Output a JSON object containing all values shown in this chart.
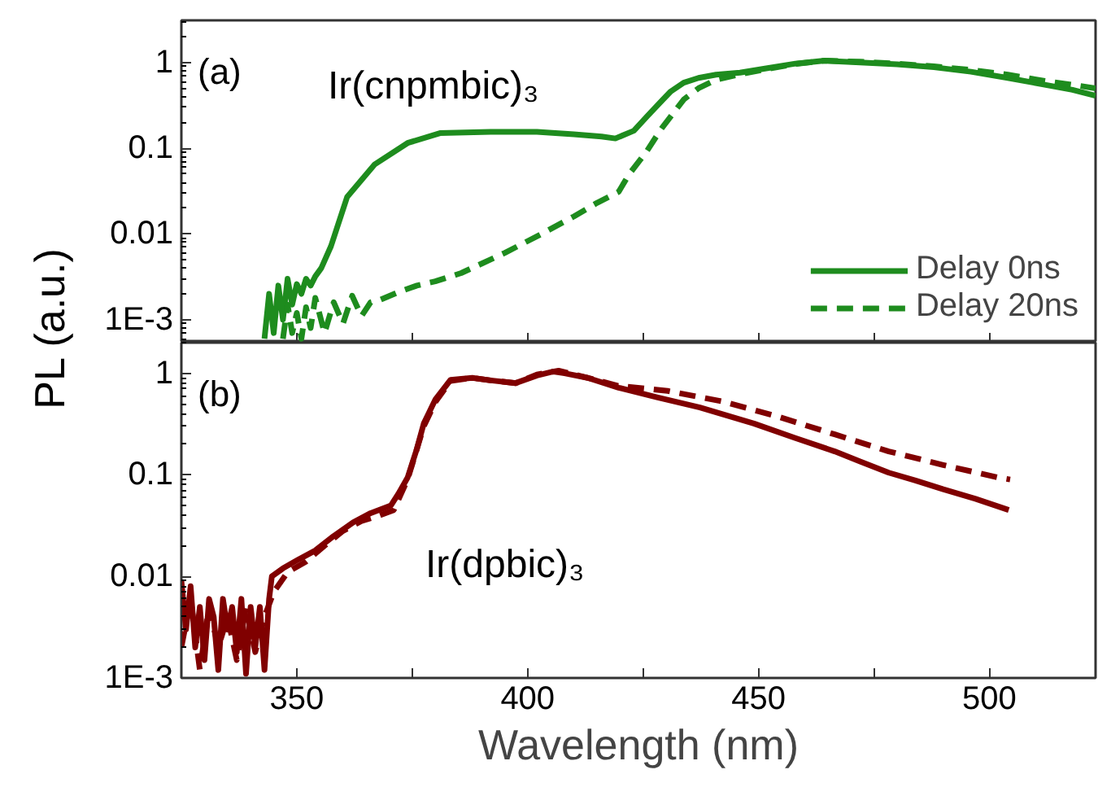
{
  "chart_data": [
    {
      "type": "line",
      "ylabel": "PL (a.u.)",
      "annotations": [
        "(a)",
        "Ir(cnpmbic)₃"
      ],
      "log": "y",
      "grid": false,
      "legend": "bottom right",
      "tick_labels": "y",
      "xlim": [
        325,
        523
      ],
      "xticks": [
        350,
        {
          "value": 375,
          "label": null
        },
        400,
        {
          "value": 425,
          "label": null
        },
        450,
        {
          "value": 475,
          "label": null
        },
        500
      ],
      "ylim": [
        0.00054,
        3.1
      ],
      "yticks": [
        {
          "value": 0.001,
          "label": "1E-3"
        },
        0.01,
        0.1,
        1
      ],
      "series": [
        {
          "name": "Delay 0ns",
          "color": "#1e8c1e",
          "line_style": "solid",
          "x": [
            343,
            344,
            345,
            346,
            347,
            348,
            349,
            350,
            351,
            352,
            353,
            354,
            355.3,
            357.4,
            360.9,
            366.9,
            374,
            381,
            392,
            402,
            410,
            416,
            419,
            423,
            426,
            429.1,
            431,
            433.8,
            437,
            440.8,
            446,
            451.4,
            458,
            464.3,
            472,
            480,
            488,
            496,
            504,
            512,
            518,
            523
          ],
          "values": [
            0.0006,
            0.002,
            0.0007,
            0.0025,
            0.001,
            0.003,
            0.0015,
            0.0026,
            0.002,
            0.003,
            0.0025,
            0.0032,
            0.004,
            0.0072,
            0.027,
            0.065,
            0.115,
            0.15,
            0.155,
            0.155,
            0.145,
            0.137,
            0.13,
            0.16,
            0.24,
            0.36,
            0.46,
            0.58,
            0.66,
            0.72,
            0.76,
            0.85,
            0.97,
            1.05,
            1.0,
            0.95,
            0.88,
            0.78,
            0.66,
            0.55,
            0.48,
            0.41
          ]
        },
        {
          "name": "Delay 20ns",
          "color": "#1e8c1e",
          "line_style": "dashed",
          "x": [
            347,
            348,
            349,
            350,
            351,
            352,
            353,
            354,
            356,
            358,
            360,
            362,
            364,
            366,
            368,
            372,
            376,
            380,
            385.6,
            390,
            395,
            403,
            410,
            415,
            419.7,
            422,
            425.6,
            429,
            433.8,
            437,
            440.8,
            446,
            452,
            458,
            464.3,
            472,
            480,
            488,
            496,
            504,
            512,
            518,
            523
          ],
          "values": [
            0.0006,
            0.0015,
            0.0007,
            0.0012,
            0.0006,
            0.0014,
            0.0008,
            0.0018,
            0.0007,
            0.0016,
            0.0009,
            0.0019,
            0.0011,
            0.0016,
            0.0017,
            0.0021,
            0.0025,
            0.0028,
            0.0035,
            0.0045,
            0.006,
            0.01,
            0.016,
            0.023,
            0.031,
            0.05,
            0.089,
            0.17,
            0.37,
            0.5,
            0.63,
            0.73,
            0.84,
            0.96,
            1.05,
            1.02,
            0.97,
            0.9,
            0.82,
            0.72,
            0.61,
            0.55,
            0.5
          ]
        }
      ]
    },
    {
      "type": "line",
      "xlabel": "Wavelength (nm)",
      "annotations": [
        "(b)",
        "Ir(dpbic)₃"
      ],
      "log": "y",
      "grid": false,
      "xlim": [
        325,
        523
      ],
      "xticks": [
        350,
        {
          "value": 375,
          "label": null
        },
        400,
        {
          "value": 425,
          "label": null
        },
        450,
        {
          "value": 475,
          "label": null
        },
        500
      ],
      "ylim": [
        0.001,
        2.0
      ],
      "yticks": [
        {
          "value": 0.001,
          "label": "1E-3"
        },
        0.01,
        0.1,
        1
      ],
      "series": [
        {
          "color": "#800000",
          "line_style": "solid",
          "x": [
            325,
            326,
            327,
            328,
            329,
            330,
            331,
            332,
            333,
            334,
            335,
            336,
            337,
            338,
            339,
            340,
            341,
            342,
            343,
            344,
            344.6,
            347,
            350.4,
            354,
            358,
            362.2,
            366,
            370.4,
            372,
            374,
            376,
            377.5,
            380,
            383.3,
            388,
            392,
            397.4,
            402,
            405.6,
            408,
            413,
            419.7,
            428,
            437.3,
            449,
            458,
            466.5,
            472,
            478.2,
            484,
            490,
            497,
            504.2
          ],
          "values": [
            0.009,
            0.003,
            0.008,
            0.002,
            0.005,
            0.0015,
            0.006,
            0.004,
            0.0012,
            0.006,
            0.003,
            0.005,
            0.0018,
            0.006,
            0.0011,
            0.005,
            0.002,
            0.005,
            0.0012,
            0.006,
            0.01,
            0.012,
            0.0147,
            0.018,
            0.025,
            0.034,
            0.042,
            0.05,
            0.065,
            0.094,
            0.18,
            0.32,
            0.55,
            0.86,
            0.9,
            0.85,
            0.8,
            0.95,
            1.04,
            1.0,
            0.9,
            0.72,
            0.58,
            0.46,
            0.32,
            0.23,
            0.17,
            0.135,
            0.105,
            0.088,
            0.072,
            0.058,
            0.045
          ]
        },
        {
          "color": "#800000",
          "line_style": "dashed",
          "x": [
            325,
            327,
            329,
            331,
            333,
            335,
            337,
            339,
            341,
            343,
            345,
            348,
            352,
            356,
            360,
            364,
            368,
            371,
            374,
            377.5,
            380,
            383.3,
            388,
            392,
            397.4,
            402,
            406.7,
            411,
            419.7,
            430.3,
            442,
            453.7,
            466.5,
            478.2,
            490,
            501.9,
            504.5
          ],
          "values": [
            0.002,
            0.006,
            0.0012,
            0.005,
            0.002,
            0.004,
            0.0015,
            0.005,
            0.0018,
            0.004,
            0.007,
            0.011,
            0.014,
            0.02,
            0.028,
            0.035,
            0.04,
            0.045,
            0.09,
            0.3,
            0.52,
            0.84,
            0.9,
            0.85,
            0.8,
            0.97,
            1.06,
            0.95,
            0.75,
            0.67,
            0.53,
            0.38,
            0.25,
            0.17,
            0.125,
            0.094,
            0.09
          ]
        }
      ]
    }
  ]
}
